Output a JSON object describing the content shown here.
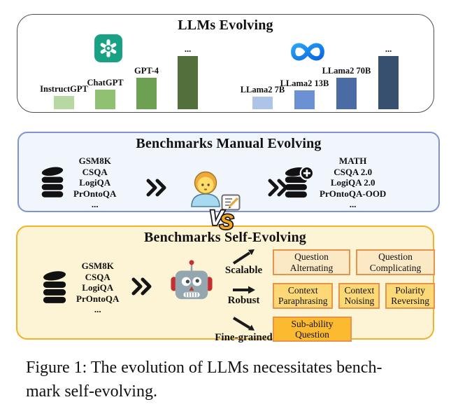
{
  "panels": {
    "llms": {
      "title": "LLMs Evolving"
    },
    "manual": {
      "title": "Benchmarks Manual Evolving",
      "source_datasets": [
        "GSM8K",
        "CSQA",
        "LogiQA",
        "PrOntoQA",
        "..."
      ],
      "evolved_datasets": [
        "MATH",
        "CSQA 2.0",
        "LogiQA 2.0",
        "PrOntoQA-OOD",
        "..."
      ]
    },
    "self": {
      "title": "Benchmarks Self-Evolving",
      "source_datasets": [
        "GSM8K",
        "CSQA",
        "LogiQA",
        "PrOntoQA",
        "..."
      ],
      "directions": [
        {
          "label": "Scalable",
          "arrow": "up-right",
          "boxes": [
            {
              "label": "Question Alternating",
              "tone": "light"
            },
            {
              "label": "Question Complicating",
              "tone": "light"
            }
          ]
        },
        {
          "label": "Robust",
          "arrow": "right",
          "boxes": [
            {
              "label": "Context Paraphrasing",
              "tone": "medium"
            },
            {
              "label": "Context Noising",
              "tone": "medium"
            },
            {
              "label": "Polarity Reversing",
              "tone": "medium"
            }
          ]
        },
        {
          "label": "Fine-grained",
          "arrow": "down-right",
          "boxes": [
            {
              "label": "Sub-ability Question",
              "tone": "dark"
            }
          ]
        }
      ],
      "box_tones": {
        "light": {
          "fill": "#fbe8c4",
          "border": "#e9934a"
        },
        "medium": {
          "fill": "#fcd876",
          "border": "#e9934a"
        },
        "dark": {
          "fill": "#fbba2f",
          "border": "#e9934a"
        }
      }
    }
  },
  "vs_label": "VS",
  "caption": {
    "line1": "Figure 1: The evolution of LLMs necessitates bench-",
    "line2": "mark self-evolving."
  },
  "chart_data": {
    "type": "bar",
    "title": "LLMs Evolving",
    "note": "Qualitative capability bars; heights estimated from figure in px, no numeric axis shown",
    "groups": [
      {
        "name": "OpenAI models",
        "logo": "openai-logo",
        "categories": [
          "InstructGPT",
          "ChatGPT",
          "GPT-4",
          "..."
        ],
        "values": [
          19,
          28,
          45,
          76
        ],
        "colors": [
          "#b7d7a3",
          "#90c173",
          "#6da053",
          "#53703c"
        ]
      },
      {
        "name": "Meta models",
        "logo": "meta-logo",
        "categories": [
          "LLama2 7B",
          "LLama2 13B",
          "LLama2 70B",
          "..."
        ],
        "values": [
          18,
          27,
          45,
          76
        ],
        "colors": [
          "#adc3e8",
          "#6c90d4",
          "#4a6ba3",
          "#38506f"
        ]
      }
    ]
  },
  "icons": {
    "database-icon": "black stacked-disks database",
    "database-plus-icon": "black database with plus badge",
    "person-icon": "human annotator emoji",
    "memo-icon": "memo with pencil",
    "robot-icon": "gray robot with red ears",
    "chevrons-icon": "double angle >>",
    "vs-icon": "VS versus badge",
    "openai-logo": "teal knot logo",
    "meta-logo": "blue infinity logo"
  },
  "colors": {
    "openai_green": "#18a184",
    "meta_blue": "#1877f2",
    "manual_panel_bg": "#f1f5fc",
    "manual_panel_border": "#7e93d6",
    "self_panel_bg": "#fdf4d5",
    "self_panel_border": "#f0b32a",
    "top_panel_border": "#4f4f4f"
  }
}
